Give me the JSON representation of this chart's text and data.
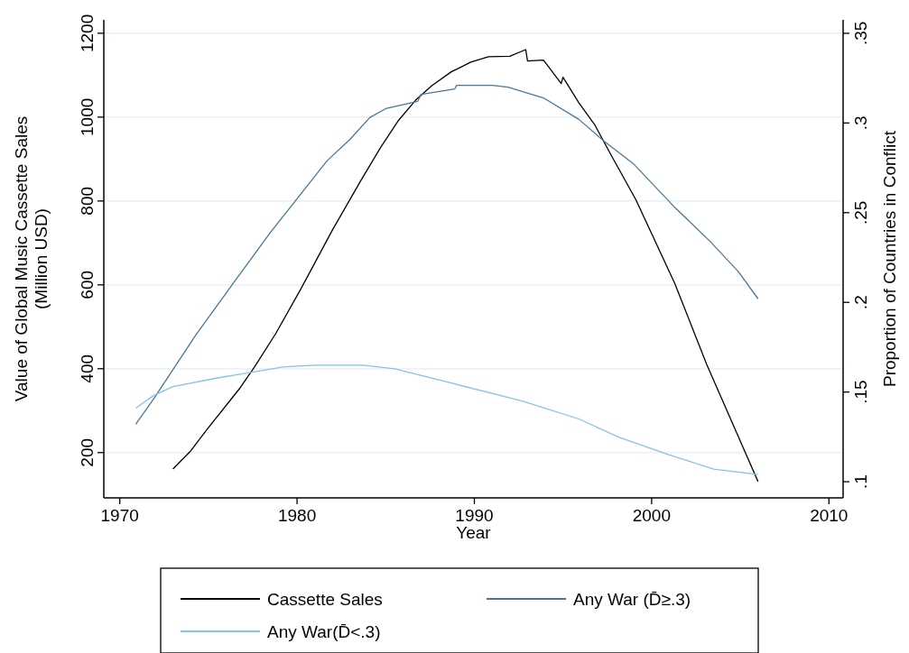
{
  "chart_data": {
    "type": "line",
    "xlabel": "Year",
    "ylabel": "Value of Global Music Cassette Sales\n(Million USD)",
    "y2label": "Proportion of Countries in Conflict",
    "xlim": [
      1969.1,
      2010.8
    ],
    "xticks": [
      1970,
      1980,
      1990,
      2000,
      2010
    ],
    "ylim": [
      92,
      1232
    ],
    "yticks": [
      200,
      400,
      600,
      800,
      1000,
      1200
    ],
    "y2lim": [
      0.091,
      0.3575
    ],
    "y2ticks": [
      {
        "value": 0.1,
        "label": ".1"
      },
      {
        "value": 0.15,
        "label": ".15"
      },
      {
        "value": 0.2,
        "label": ".2"
      },
      {
        "value": 0.25,
        "label": ".25"
      },
      {
        "value": 0.3,
        "label": ".3"
      },
      {
        "value": 0.35,
        "label": ".35"
      }
    ],
    "grid": "y",
    "legend": "bottom",
    "line_style": "solid",
    "marker": "none",
    "series": [
      {
        "name": "Cassette Sales",
        "color": "#000000",
        "x": [
          1973,
          1974,
          1974.9,
          1976.8,
          1977.6,
          1978.8,
          1980.2,
          1982,
          1983.6,
          1984.7,
          1985.7,
          1986.7,
          1987.6,
          1988.7,
          1989.8,
          1990.8,
          1992,
          1992.9,
          1993,
          1993.9,
          1994.9,
          1995,
          1995.9,
          1996.8,
          1997.8,
          1999.1,
          2001.3,
          2003.1,
          2006
        ],
        "values": [
          161,
          204,
          254,
          355,
          404,
          484,
          589,
          731,
          849,
          927,
          991,
          1041,
          1075,
          1108,
          1131,
          1144,
          1145,
          1161,
          1134,
          1136,
          1080,
          1095,
          1034,
          981,
          903,
          804,
          604,
          411,
          131
        ]
      },
      {
        "name": "Any War (D̄≥.3)",
        "color": "#4a7797",
        "axis": "y2",
        "x": [
          1970.9,
          1971.9,
          1974.3,
          1976.5,
          1978.5,
          1980.1,
          1981.7,
          1983,
          1984.1,
          1985,
          1986.8,
          1987,
          1988.9,
          1989,
          1991,
          1991.9,
          1993.9,
          1995.9,
          1997.3,
          1999,
          2001.3,
          2003.3,
          2004.9,
          2006
        ],
        "values": [
          0.132,
          0.146,
          0.182,
          0.212,
          0.239,
          0.259,
          0.279,
          0.291,
          0.303,
          0.308,
          0.312,
          0.316,
          0.319,
          0.321,
          0.321,
          0.32,
          0.314,
          0.302,
          0.29,
          0.277,
          0.253,
          0.234,
          0.217,
          0.202
        ]
      },
      {
        "name": "Any War(D̄<.3)",
        "color": "#84c3ea",
        "axis": "y2",
        "x": [
          1970.9,
          1971.9,
          1973,
          1975.6,
          1977.4,
          1979.2,
          1981,
          1983.7,
          1985.5,
          1988.7,
          1992.7,
          1995.9,
          1998.1,
          2001,
          2003.5,
          2006
        ],
        "values": [
          0.141,
          0.148,
          0.153,
          0.158,
          0.161,
          0.164,
          0.165,
          0.165,
          0.163,
          0.155,
          0.145,
          0.135,
          0.125,
          0.115,
          0.107,
          0.104
        ]
      }
    ]
  }
}
